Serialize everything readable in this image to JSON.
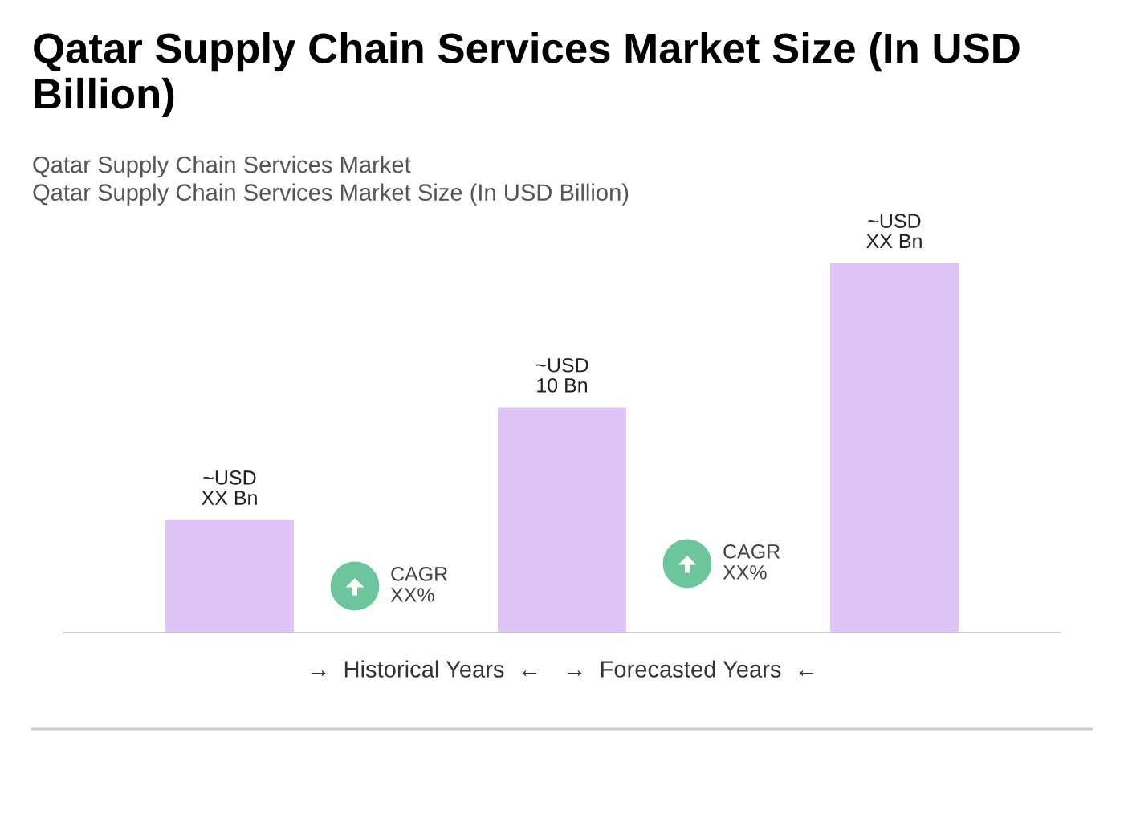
{
  "chart_data": {
    "type": "bar",
    "title": "Qatar Supply Chain Services Market Size (In USD Billion)",
    "subtitle": "Qatar Supply Chain Services Market\nQatar Supply Chain Services Market Size (In USD Billion)",
    "categories": [
      null,
      null,
      null
    ],
    "values": [
      5,
      10,
      16.4
    ],
    "color": "#dfc3f7",
    "value_labels": [
      "~USD\nXX Bn",
      "~USD\n10 Bn",
      "~USD\nXX Bn"
    ],
    "annotations": [
      "CAGR\nXX%",
      "CAGR\nXX%",
      "→  Historical Years  ←",
      "→  Forecasted Years  ←"
    ],
    "grid": false,
    "legend": false
  }
}
